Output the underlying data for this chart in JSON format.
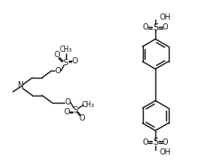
{
  "bg_color": "#ffffff",
  "line_color": "#1a1a1a",
  "lw": 1.0,
  "fs": 6.0,
  "figsize": [
    2.24,
    1.87
  ],
  "dpi": 100,
  "xlim": [
    0,
    224
  ],
  "ylim": [
    0,
    187
  ]
}
